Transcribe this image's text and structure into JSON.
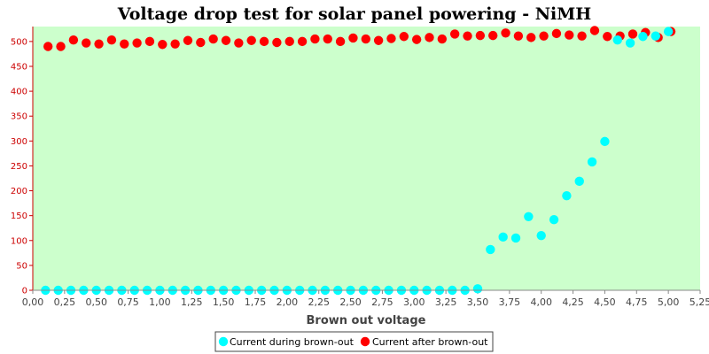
{
  "chart_data": {
    "type": "scatter",
    "title": "Voltage drop test for solar panel powering -  NiMH",
    "xlabel": "Brown out voltage",
    "ylabel": "",
    "xlim": [
      0,
      5.25
    ],
    "ylim": [
      0,
      530
    ],
    "x_ticks": [
      "0,00",
      "0,25",
      "0,50",
      "0,75",
      "1,00",
      "1,25",
      "1,50",
      "1,75",
      "2,00",
      "2,25",
      "2,50",
      "2,75",
      "3,00",
      "3,25",
      "3,50",
      "3,75",
      "4,00",
      "4,25",
      "4,50",
      "4,75",
      "5,00",
      "5,25"
    ],
    "y_ticks": [
      0,
      50,
      100,
      150,
      200,
      250,
      300,
      350,
      400,
      450,
      500
    ],
    "background": "#ccffcc",
    "legend_position": "bottom",
    "series": [
      {
        "name": "Current during brown-out",
        "color": "#00ffff",
        "points": [
          [
            0.1,
            0
          ],
          [
            0.2,
            0
          ],
          [
            0.3,
            0
          ],
          [
            0.4,
            0
          ],
          [
            0.5,
            0
          ],
          [
            0.6,
            0
          ],
          [
            0.7,
            0
          ],
          [
            0.8,
            0
          ],
          [
            0.9,
            0
          ],
          [
            1.0,
            0
          ],
          [
            1.1,
            0
          ],
          [
            1.2,
            0
          ],
          [
            1.3,
            0
          ],
          [
            1.4,
            0
          ],
          [
            1.5,
            0
          ],
          [
            1.6,
            0
          ],
          [
            1.7,
            0
          ],
          [
            1.8,
            0
          ],
          [
            1.9,
            0
          ],
          [
            2.0,
            0
          ],
          [
            2.1,
            0
          ],
          [
            2.2,
            0
          ],
          [
            2.3,
            0
          ],
          [
            2.4,
            0
          ],
          [
            2.5,
            0
          ],
          [
            2.6,
            0
          ],
          [
            2.7,
            0
          ],
          [
            2.8,
            0
          ],
          [
            2.9,
            0
          ],
          [
            3.0,
            0
          ],
          [
            3.1,
            0
          ],
          [
            3.2,
            0
          ],
          [
            3.3,
            0
          ],
          [
            3.4,
            0
          ],
          [
            3.5,
            3
          ],
          [
            3.6,
            82
          ],
          [
            3.7,
            107
          ],
          [
            3.8,
            105
          ],
          [
            3.9,
            148
          ],
          [
            4.0,
            110
          ],
          [
            4.1,
            142
          ],
          [
            4.2,
            190
          ],
          [
            4.3,
            219
          ],
          [
            4.4,
            258
          ],
          [
            4.5,
            299
          ],
          [
            4.6,
            503
          ],
          [
            4.7,
            497
          ],
          [
            4.8,
            510
          ],
          [
            4.9,
            511
          ],
          [
            5.0,
            520
          ]
        ]
      },
      {
        "name": "Current after brown-out",
        "color": "#ff0000",
        "points": [
          [
            0.12,
            490
          ],
          [
            0.22,
            490
          ],
          [
            0.32,
            503
          ],
          [
            0.42,
            497
          ],
          [
            0.52,
            495
          ],
          [
            0.62,
            503
          ],
          [
            0.72,
            495
          ],
          [
            0.82,
            497
          ],
          [
            0.92,
            500
          ],
          [
            1.02,
            494
          ],
          [
            1.12,
            495
          ],
          [
            1.22,
            502
          ],
          [
            1.32,
            498
          ],
          [
            1.42,
            505
          ],
          [
            1.52,
            502
          ],
          [
            1.62,
            497
          ],
          [
            1.72,
            502
          ],
          [
            1.82,
            500
          ],
          [
            1.92,
            498
          ],
          [
            2.02,
            500
          ],
          [
            2.12,
            500
          ],
          [
            2.22,
            505
          ],
          [
            2.32,
            505
          ],
          [
            2.42,
            500
          ],
          [
            2.52,
            507
          ],
          [
            2.62,
            505
          ],
          [
            2.72,
            502
          ],
          [
            2.82,
            506
          ],
          [
            2.92,
            510
          ],
          [
            3.02,
            504
          ],
          [
            3.12,
            508
          ],
          [
            3.22,
            505
          ],
          [
            3.32,
            515
          ],
          [
            3.42,
            511
          ],
          [
            3.52,
            512
          ],
          [
            3.62,
            512
          ],
          [
            3.72,
            517
          ],
          [
            3.82,
            511
          ],
          [
            3.92,
            508
          ],
          [
            4.02,
            511
          ],
          [
            4.12,
            516
          ],
          [
            4.22,
            513
          ],
          [
            4.32,
            511
          ],
          [
            4.42,
            522
          ],
          [
            4.52,
            510
          ],
          [
            4.62,
            511
          ],
          [
            4.72,
            515
          ],
          [
            4.82,
            518
          ],
          [
            4.92,
            508
          ],
          [
            5.02,
            520
          ]
        ]
      }
    ]
  }
}
